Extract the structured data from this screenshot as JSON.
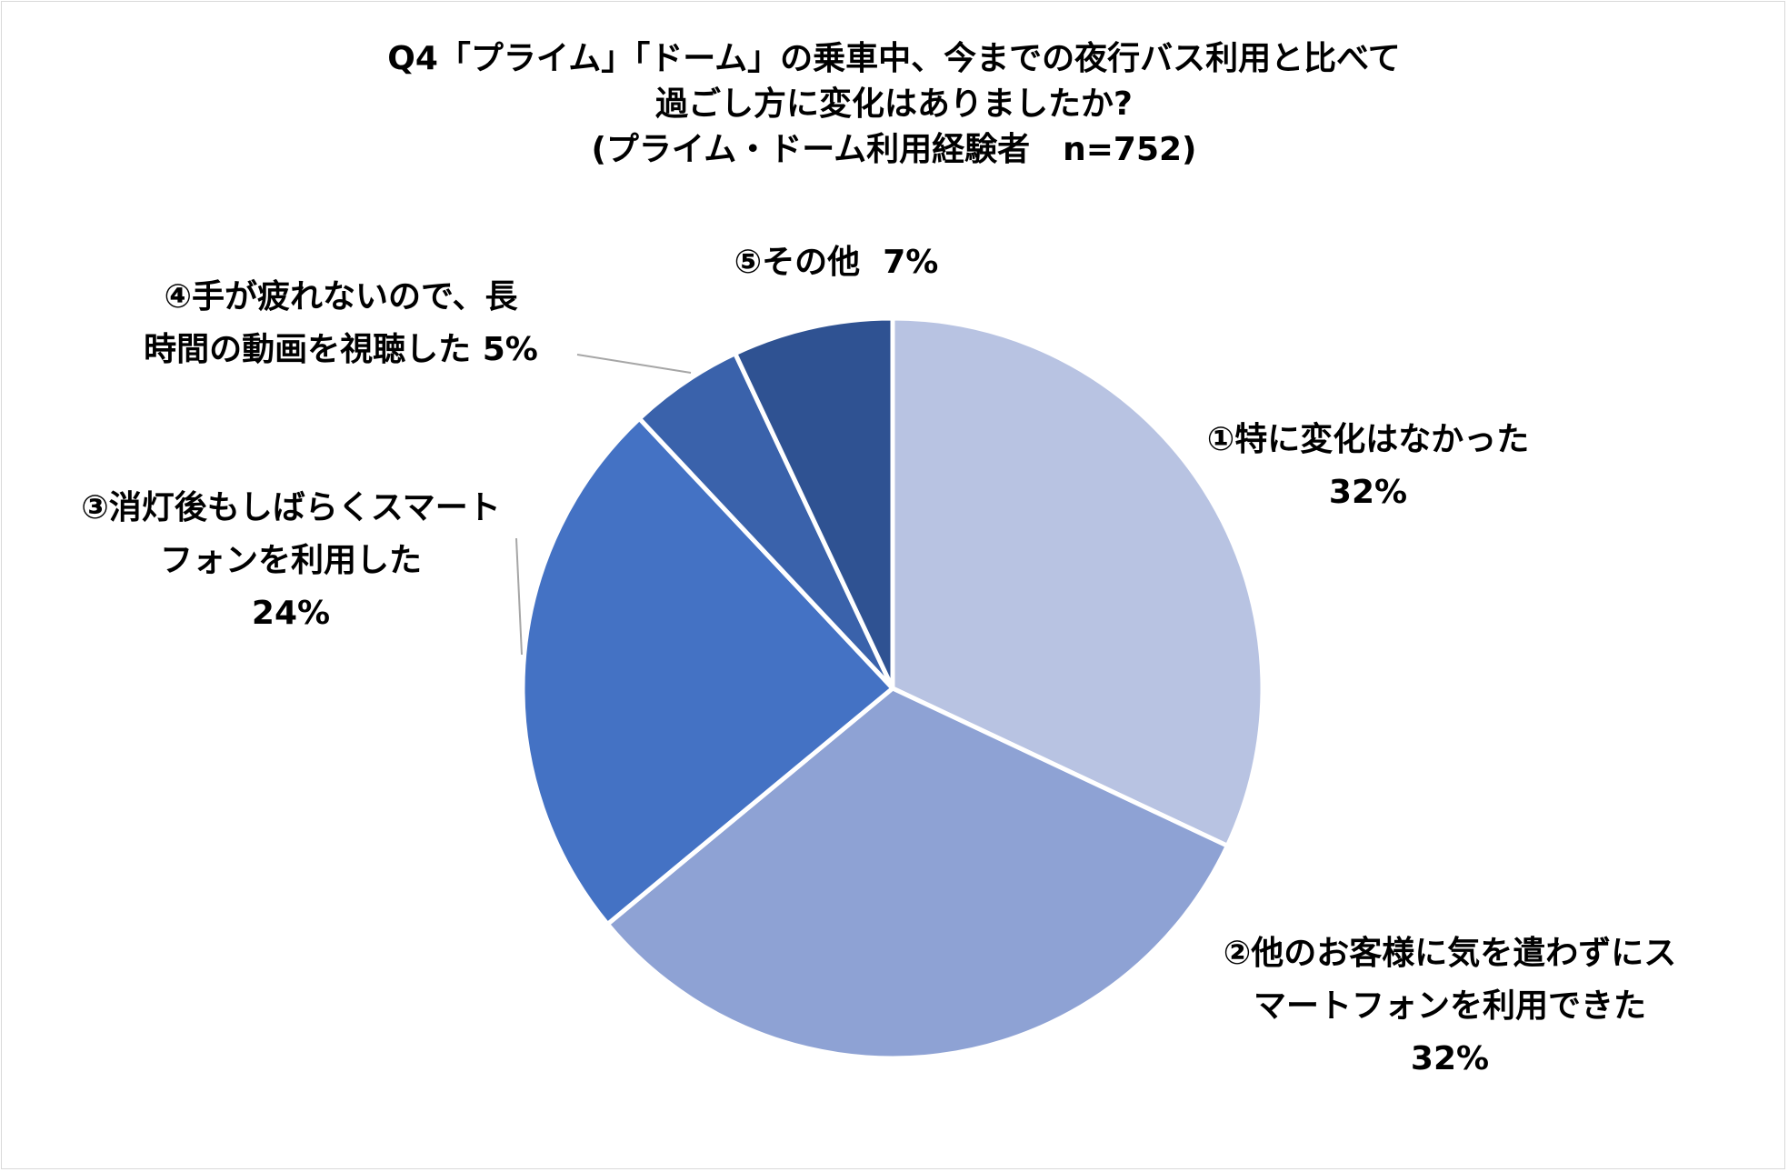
{
  "chart_data": {
    "type": "pie",
    "title_lines": [
      "Q4「プライム」「ドーム」の乗車中、今までの夜行バス利用と比べて",
      "過ごし方に変化はありましたか?",
      "(プライム・ドーム利用経験者　n=752)"
    ],
    "slices": [
      {
        "label_lines": [
          "①特に変化はなかった"
        ],
        "value_label": "32%",
        "value": 32,
        "color": "#b8c3e2"
      },
      {
        "label_lines": [
          "②他のお客様に気を遣わずにス",
          "マートフォンを利用できた"
        ],
        "value_label": "32%",
        "value": 32,
        "color": "#8ea2d4"
      },
      {
        "label_lines": [
          "③消灯後もしばらくスマート",
          "フォンを利用した"
        ],
        "value_label": "24%",
        "value": 24,
        "color": "#4472c4"
      },
      {
        "label_lines": [
          "④手が疲れないので、長",
          "時間の動画を視聴した"
        ],
        "value_label": "5%",
        "value": 5,
        "color": "#3a62ab"
      },
      {
        "label_lines": [
          "⑤その他"
        ],
        "value_label": "7%",
        "value": 7,
        "color": "#2f5292"
      }
    ],
    "start_angle": "12 o'clock",
    "direction": "clockwise",
    "legend": "none"
  }
}
